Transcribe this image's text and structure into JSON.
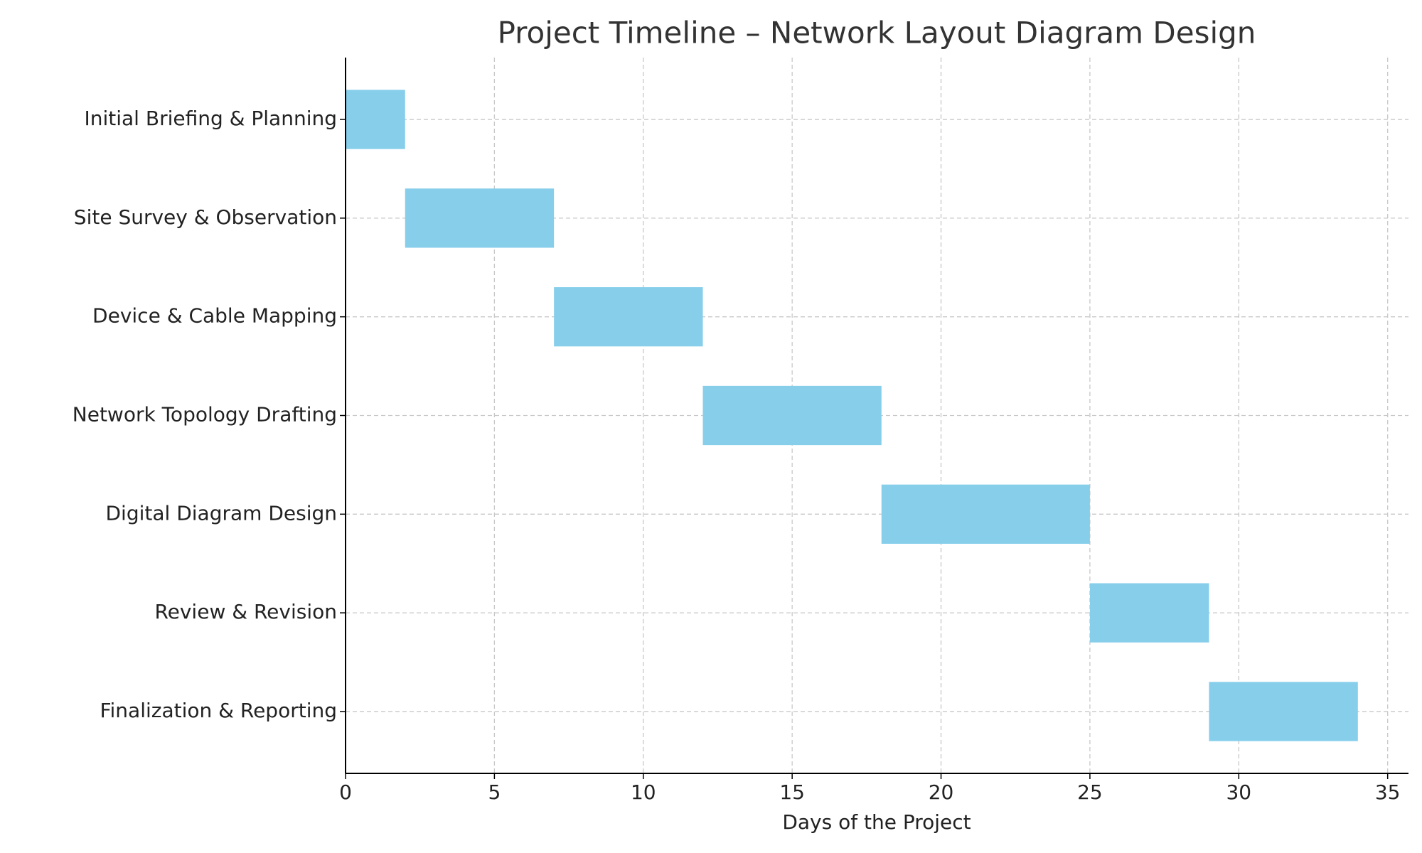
{
  "chart_data": {
    "type": "gantt",
    "title": "Project Timeline – Network Layout Diagram Design",
    "x_label": "Days of the Project",
    "categories": [
      "Initial Briefing & Planning",
      "Site Survey & Observation",
      "Device & Cable Mapping",
      "Network Topology Drafting",
      "Digital Diagram Design",
      "Review & Revision",
      "Finalization & Reporting"
    ],
    "starts": [
      0,
      2,
      7,
      12,
      18,
      25,
      29
    ],
    "durations": [
      2,
      5,
      5,
      6,
      7,
      4,
      5
    ],
    "color": "#87ceeb",
    "xlim": [
      0,
      35.7
    ],
    "xticks": [
      0,
      5,
      10,
      15,
      20,
      25,
      30,
      35
    ],
    "grid": true
  }
}
